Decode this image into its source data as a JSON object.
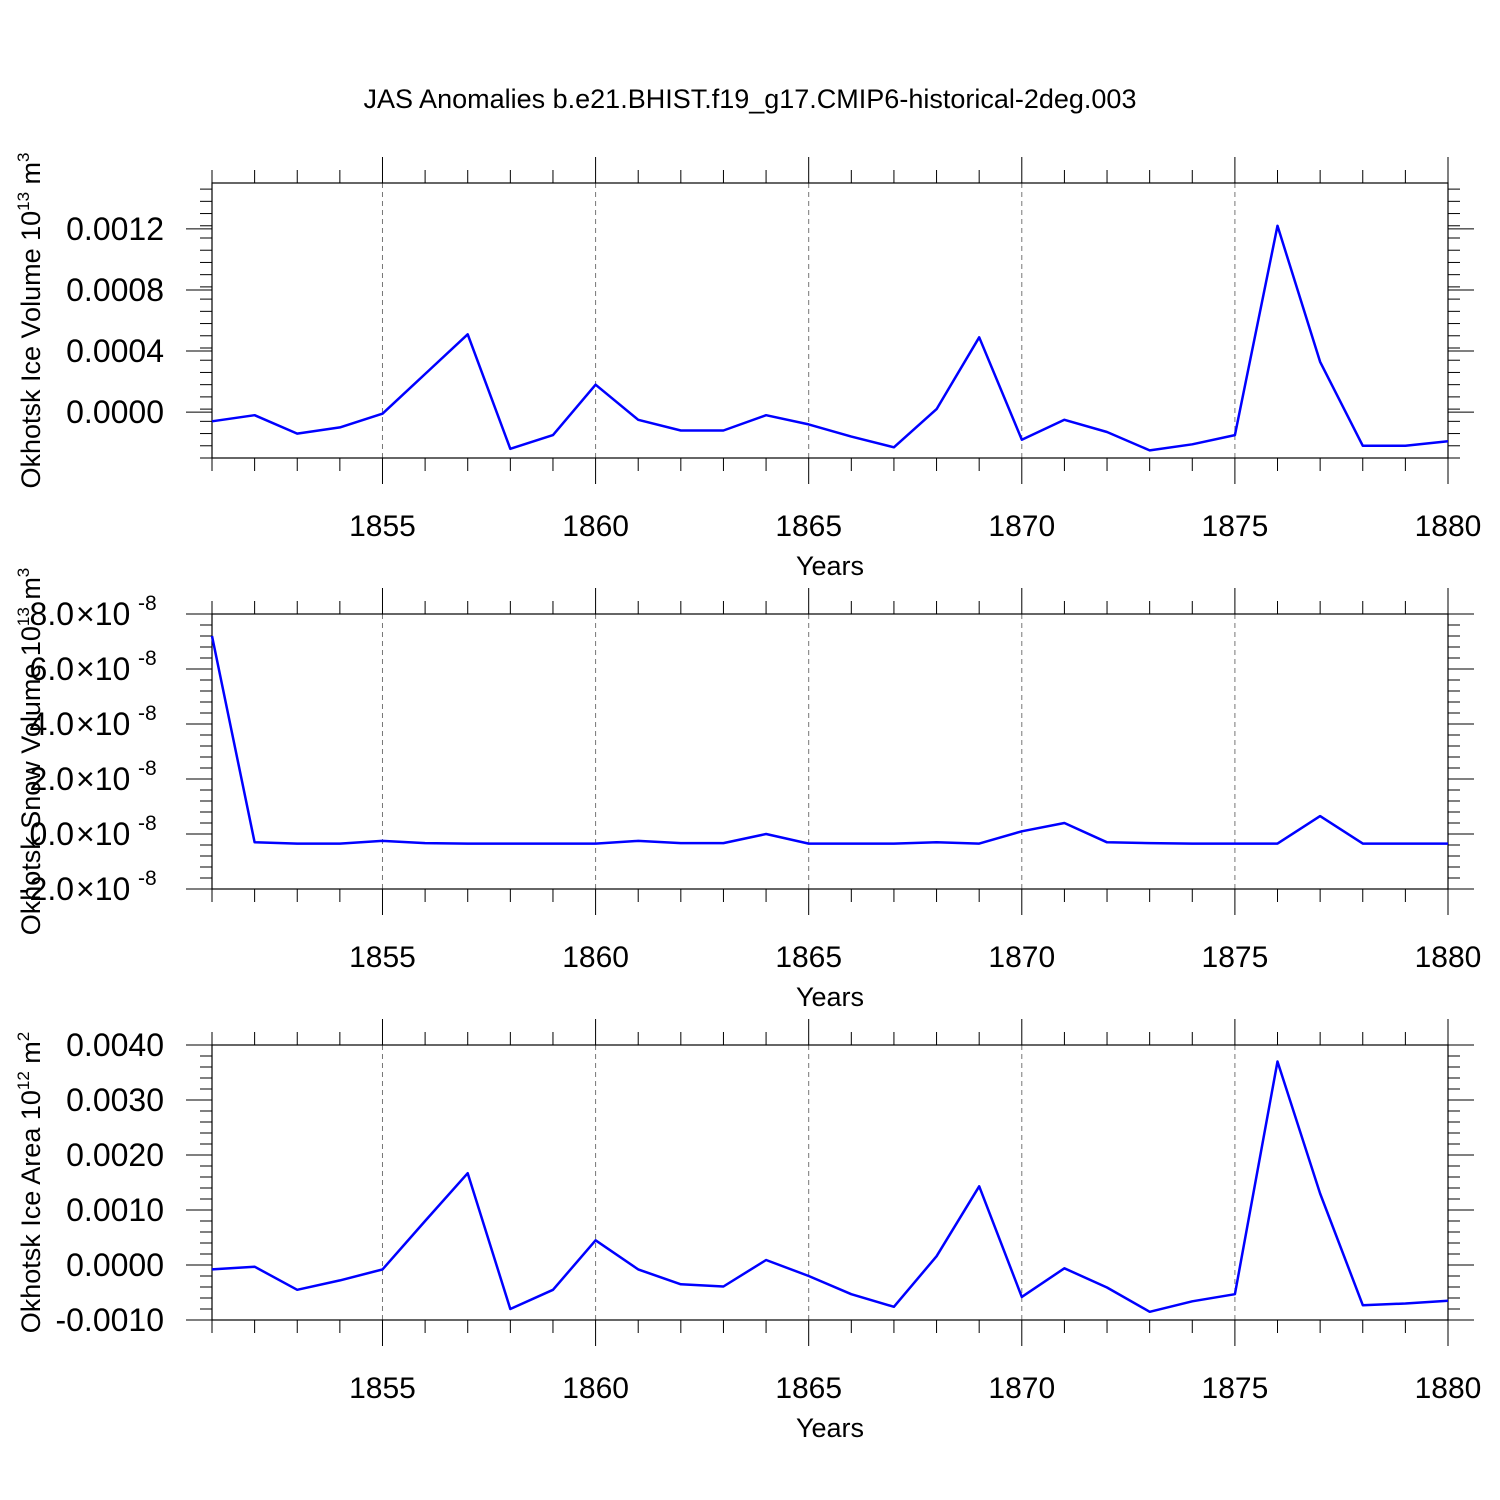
{
  "title": "JAS Anomalies b.e21.BHIST.f19_g17.CMIP6-historical-2deg.003",
  "line_color": "#0000ff",
  "years": [
    1851,
    1852,
    1853,
    1854,
    1855,
    1856,
    1857,
    1858,
    1859,
    1860,
    1861,
    1862,
    1863,
    1864,
    1865,
    1866,
    1867,
    1868,
    1869,
    1870,
    1871,
    1872,
    1873,
    1874,
    1875,
    1876,
    1877,
    1878,
    1879,
    1880
  ],
  "chart_data": [
    {
      "type": "line",
      "ylabel": "Okhotsk Ice Volume 10",
      "ylabel_exp": "13",
      "ylabel_unit": " m",
      "ylabel_unit_exp": "3",
      "xlabel": "Years",
      "xlim": [
        1851,
        1880
      ],
      "xticks": [
        1855,
        1860,
        1865,
        1870,
        1875,
        1880
      ],
      "ylim": [
        -0.0003,
        0.0015
      ],
      "yticks": [
        0.0,
        0.0004,
        0.0008,
        0.0012
      ],
      "ytick_labels": [
        "0.0000",
        "0.0004",
        "0.0008",
        "0.0012"
      ],
      "grid": "vertical dashed",
      "series": [
        {
          "values": [
            -6e-05,
            -2e-05,
            -0.00014,
            -0.0001,
            -1e-05,
            0.00025,
            0.00051,
            -0.00024,
            -0.00015,
            0.00018,
            -5e-05,
            -0.00012,
            -0.00012,
            -2e-05,
            -8e-05,
            -0.00016,
            -0.00023,
            2e-05,
            0.00049,
            -0.00018,
            -5e-05,
            -0.00013,
            -0.00025,
            -0.00021,
            -0.00015,
            0.00122,
            0.00033,
            -0.00022,
            -0.00022,
            -0.00019
          ]
        }
      ]
    },
    {
      "type": "line",
      "ylabel": "Okhotsk Snow Volume 10",
      "ylabel_exp": "13",
      "ylabel_unit": " m",
      "ylabel_unit_exp": "3",
      "xlabel": "Years",
      "xlim": [
        1851,
        1880
      ],
      "xticks": [
        1855,
        1860,
        1865,
        1870,
        1875,
        1880
      ],
      "ylim": [
        -2e-08,
        8e-08
      ],
      "yticks": [
        -2e-08,
        0.0,
        2e-08,
        4e-08,
        6e-08,
        8e-08
      ],
      "ytick_mantissas": [
        "-2.0",
        "0.0",
        "2.0",
        "4.0",
        "6.0",
        "8.0"
      ],
      "ytick_exp_base": "10",
      "ytick_exp": "-8",
      "ytick_times": "×",
      "grid": "vertical dashed",
      "series": [
        {
          "values": [
            7.2e-08,
            -3e-09,
            -3.5e-09,
            -3.5e-09,
            -2.5e-09,
            -3.3e-09,
            -3.5e-09,
            -3.5e-09,
            -3.5e-09,
            -3.5e-09,
            -2.5e-09,
            -3.3e-09,
            -3.3e-09,
            0.0,
            -3.5e-09,
            -3.5e-09,
            -3.5e-09,
            -3e-09,
            -3.5e-09,
            1e-09,
            4e-09,
            -3e-09,
            -3.3e-09,
            -3.5e-09,
            -3.5e-09,
            -3.5e-09,
            6.5e-09,
            -3.5e-09,
            -3.5e-09,
            -3.5e-09
          ]
        }
      ]
    },
    {
      "type": "line",
      "ylabel": "Okhotsk Ice Area 10",
      "ylabel_exp": "12",
      "ylabel_unit": " m",
      "ylabel_unit_exp": "2",
      "xlabel": "Years",
      "xlim": [
        1851,
        1880
      ],
      "xticks": [
        1855,
        1860,
        1865,
        1870,
        1875,
        1880
      ],
      "ylim": [
        -0.001,
        0.004
      ],
      "yticks": [
        -0.001,
        0.0,
        0.001,
        0.002,
        0.003,
        0.004
      ],
      "ytick_labels": [
        "-0.0010",
        "0.0000",
        "0.0010",
        "0.0020",
        "0.0030",
        "0.0040"
      ],
      "grid": "vertical dashed",
      "series": [
        {
          "values": [
            -8e-05,
            -3e-05,
            -0.00045,
            -0.00028,
            -8e-05,
            0.0008,
            0.00167,
            -0.0008,
            -0.00045,
            0.00045,
            -8e-05,
            -0.00035,
            -0.00039,
            9e-05,
            -0.0002,
            -0.00053,
            -0.00076,
            0.00016,
            0.00143,
            -0.00058,
            -6e-05,
            -0.00041,
            -0.00085,
            -0.00066,
            -0.00053,
            0.0037,
            0.0013,
            -0.00073,
            -0.0007,
            -0.00065
          ]
        }
      ]
    }
  ]
}
